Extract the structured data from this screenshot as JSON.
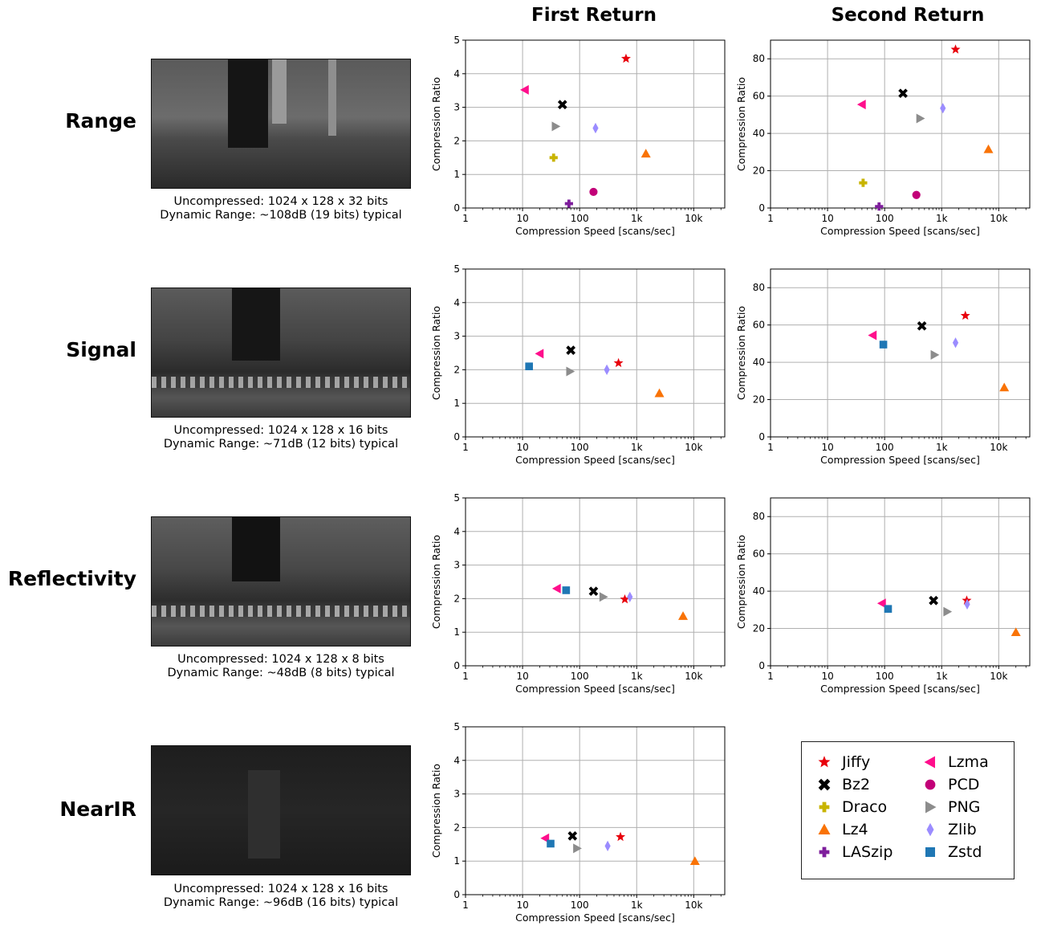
{
  "column_titles": [
    "First Return",
    "Second Return"
  ],
  "rows": [
    {
      "label": "Range",
      "caption1": "Uncompressed: 1024 x 128 x 32 bits",
      "caption2": "Dynamic Range: ~108dB (19 bits) typical"
    },
    {
      "label": "Signal",
      "caption1": "Uncompressed: 1024 x 128 x 16 bits",
      "caption2": "Dynamic Range: ~71dB (12 bits) typical"
    },
    {
      "label": "Reflectivity",
      "caption1": "Uncompressed: 1024 x 128 x 8 bits",
      "caption2": "Dynamic Range: ~48dB (8 bits) typical"
    },
    {
      "label": "NearIR",
      "caption1": "Uncompressed: 1024 x 128 x 16 bits",
      "caption2": "Dynamic Range: ~96dB (16 bits) typical"
    }
  ],
  "legend": [
    {
      "name": "Jiffy",
      "marker": "star",
      "color": "#e8000b"
    },
    {
      "name": "Bz2",
      "marker": "x",
      "color": "#000000"
    },
    {
      "name": "Draco",
      "marker": "plus",
      "color": "#c8b400"
    },
    {
      "name": "Lz4",
      "marker": "triangle-up",
      "color": "#f97306"
    },
    {
      "name": "LASzip",
      "marker": "plus",
      "color": "#7e1e9c"
    },
    {
      "name": "Lzma",
      "marker": "triangle-left",
      "color": "#ff0f8c"
    },
    {
      "name": "PCD",
      "marker": "circle",
      "color": "#c20078"
    },
    {
      "name": "PNG",
      "marker": "triangle-right",
      "color": "#8c8c8c"
    },
    {
      "name": "Zlib",
      "marker": "diamond",
      "color": "#9b8cff"
    },
    {
      "name": "Zstd",
      "marker": "square",
      "color": "#1f77b4"
    }
  ],
  "chart_data": [
    {
      "type": "scatter",
      "row": "Range",
      "column": "First Return",
      "xscale": "log",
      "xlabel": "Compression Speed [scans/sec]",
      "ylabel": "Compression Ratio",
      "xlim": [
        1,
        35000
      ],
      "ylim": [
        0,
        5
      ],
      "xticks": [
        "1",
        "10",
        "100",
        "1k",
        "10k"
      ],
      "yticks": [
        0,
        1,
        2,
        3,
        4,
        5
      ],
      "grid": true,
      "points": [
        {
          "series": "Jiffy",
          "x": 650,
          "y": 4.45
        },
        {
          "series": "Bz2",
          "x": 50,
          "y": 3.08
        },
        {
          "series": "Draco",
          "x": 35,
          "y": 1.5
        },
        {
          "series": "Lz4",
          "x": 1450,
          "y": 1.62
        },
        {
          "series": "LASzip",
          "x": 65,
          "y": 0.13
        },
        {
          "series": "Lzma",
          "x": 11,
          "y": 3.52
        },
        {
          "series": "PCD",
          "x": 175,
          "y": 0.48
        },
        {
          "series": "PNG",
          "x": 38,
          "y": 2.43
        },
        {
          "series": "Zlib",
          "x": 190,
          "y": 2.38
        }
      ]
    },
    {
      "type": "scatter",
      "row": "Range",
      "column": "Second Return",
      "xscale": "log",
      "xlabel": "Compression Speed [scans/sec]",
      "ylabel": "Compression Ratio",
      "xlim": [
        1,
        35000
      ],
      "ylim": [
        0,
        90
      ],
      "xticks": [
        "1",
        "10",
        "100",
        "1k",
        "10k"
      ],
      "yticks": [
        0,
        20,
        40,
        60,
        80
      ],
      "grid": true,
      "points": [
        {
          "series": "Jiffy",
          "x": 1750,
          "y": 85
        },
        {
          "series": "Bz2",
          "x": 210,
          "y": 61.5
        },
        {
          "series": "Draco",
          "x": 42,
          "y": 13.5
        },
        {
          "series": "Lz4",
          "x": 6600,
          "y": 31.5
        },
        {
          "series": "LASzip",
          "x": 80,
          "y": 0.8
        },
        {
          "series": "Lzma",
          "x": 40,
          "y": 55.5
        },
        {
          "series": "PCD",
          "x": 360,
          "y": 7
        },
        {
          "series": "PNG",
          "x": 420,
          "y": 48
        },
        {
          "series": "Zlib",
          "x": 1050,
          "y": 53.5
        }
      ]
    },
    {
      "type": "scatter",
      "row": "Signal",
      "column": "First Return",
      "xscale": "log",
      "xlabel": "Compression Speed [scans/sec]",
      "ylabel": "Compression Ratio",
      "xlim": [
        1,
        35000
      ],
      "ylim": [
        0,
        5
      ],
      "xticks": [
        "1",
        "10",
        "100",
        "1k",
        "10k"
      ],
      "yticks": [
        0,
        1,
        2,
        3,
        4,
        5
      ],
      "grid": true,
      "points": [
        {
          "series": "Jiffy",
          "x": 480,
          "y": 2.2
        },
        {
          "series": "Bz2",
          "x": 70,
          "y": 2.58
        },
        {
          "series": "Lz4",
          "x": 2500,
          "y": 1.3
        },
        {
          "series": "Lzma",
          "x": 20,
          "y": 2.48
        },
        {
          "series": "PNG",
          "x": 68,
          "y": 1.95
        },
        {
          "series": "Zlib",
          "x": 300,
          "y": 2.0
        },
        {
          "series": "Zstd",
          "x": 13,
          "y": 2.1
        }
      ]
    },
    {
      "type": "scatter",
      "row": "Signal",
      "column": "Second Return",
      "xscale": "log",
      "xlabel": "Compression Speed [scans/sec]",
      "ylabel": "Compression Ratio",
      "xlim": [
        1,
        35000
      ],
      "ylim": [
        0,
        90
      ],
      "xticks": [
        "1",
        "10",
        "100",
        "1k",
        "10k"
      ],
      "yticks": [
        0,
        20,
        40,
        60,
        80
      ],
      "grid": true,
      "points": [
        {
          "series": "Jiffy",
          "x": 2600,
          "y": 65
        },
        {
          "series": "Bz2",
          "x": 450,
          "y": 59.5
        },
        {
          "series": "Lz4",
          "x": 12500,
          "y": 26.5
        },
        {
          "series": "Lzma",
          "x": 62,
          "y": 54.5
        },
        {
          "series": "PNG",
          "x": 750,
          "y": 44
        },
        {
          "series": "Zlib",
          "x": 1750,
          "y": 50.5
        },
        {
          "series": "Zstd",
          "x": 95,
          "y": 49.5
        }
      ]
    },
    {
      "type": "scatter",
      "row": "Reflectivity",
      "column": "First Return",
      "xscale": "log",
      "xlabel": "Compression Speed [scans/sec]",
      "ylabel": "Compression Ratio",
      "xlim": [
        1,
        35000
      ],
      "ylim": [
        0,
        5
      ],
      "xticks": [
        "1",
        "10",
        "100",
        "1k",
        "10k"
      ],
      "yticks": [
        0,
        1,
        2,
        3,
        4,
        5
      ],
      "grid": true,
      "points": [
        {
          "series": "Jiffy",
          "x": 620,
          "y": 1.98
        },
        {
          "series": "Bz2",
          "x": 175,
          "y": 2.22
        },
        {
          "series": "Lz4",
          "x": 6500,
          "y": 1.48
        },
        {
          "series": "Lzma",
          "x": 40,
          "y": 2.3
        },
        {
          "series": "PNG",
          "x": 260,
          "y": 2.05
        },
        {
          "series": "Zlib",
          "x": 760,
          "y": 2.05
        },
        {
          "series": "Zstd",
          "x": 58,
          "y": 2.25
        }
      ]
    },
    {
      "type": "scatter",
      "row": "Reflectivity",
      "column": "Second Return",
      "xscale": "log",
      "xlabel": "Compression Speed [scans/sec]",
      "ylabel": "Compression Ratio",
      "xlim": [
        1,
        35000
      ],
      "ylim": [
        0,
        90
      ],
      "xticks": [
        "1",
        "10",
        "100",
        "1k",
        "10k"
      ],
      "yticks": [
        0,
        20,
        40,
        60,
        80
      ],
      "grid": true,
      "points": [
        {
          "series": "Jiffy",
          "x": 2750,
          "y": 35
        },
        {
          "series": "Bz2",
          "x": 720,
          "y": 35
        },
        {
          "series": "Lz4",
          "x": 20000,
          "y": 18
        },
        {
          "series": "Lzma",
          "x": 90,
          "y": 33.5
        },
        {
          "series": "PNG",
          "x": 1250,
          "y": 29
        },
        {
          "series": "Zlib",
          "x": 2800,
          "y": 33
        },
        {
          "series": "Zstd",
          "x": 115,
          "y": 30.5
        }
      ]
    },
    {
      "type": "scatter",
      "row": "NearIR",
      "column": "First Return",
      "xscale": "log",
      "xlabel": "Compression Speed [scans/sec]",
      "ylabel": "Compression Ratio",
      "xlim": [
        1,
        35000
      ],
      "ylim": [
        0,
        5
      ],
      "xticks": [
        "1",
        "10",
        "100",
        "1k",
        "10k"
      ],
      "yticks": [
        0,
        1,
        2,
        3,
        4,
        5
      ],
      "grid": true,
      "points": [
        {
          "series": "Jiffy",
          "x": 520,
          "y": 1.72
        },
        {
          "series": "Bz2",
          "x": 75,
          "y": 1.75
        },
        {
          "series": "Lz4",
          "x": 10500,
          "y": 1.0
        },
        {
          "series": "Lzma",
          "x": 25,
          "y": 1.68
        },
        {
          "series": "PNG",
          "x": 90,
          "y": 1.38
        },
        {
          "series": "Zlib",
          "x": 310,
          "y": 1.45
        },
        {
          "series": "Zstd",
          "x": 31,
          "y": 1.52
        }
      ]
    }
  ]
}
